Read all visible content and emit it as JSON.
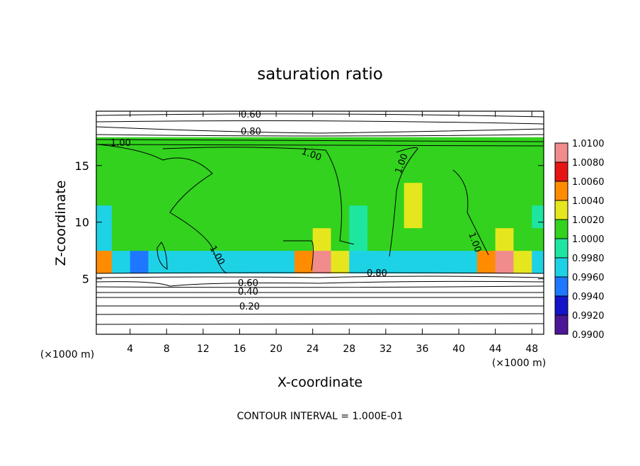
{
  "chart_data": {
    "type": "contour",
    "title": "saturation ratio",
    "xlabel": "X-coordinate",
    "ylabel": "Z-coordinate",
    "x_unit": "(×1000 m)",
    "y_unit": "(×1000 m)",
    "footnote": "CONTOUR INTERVAL = 1.000E-01",
    "xlim": [
      0.3,
      49.3
    ],
    "ylim": [
      0.1,
      19.8
    ],
    "xticks": [
      4,
      8,
      12,
      16,
      20,
      24,
      28,
      32,
      36,
      40,
      44,
      48
    ],
    "yticks": [
      5,
      10,
      15
    ],
    "x": [
      1,
      3,
      5,
      7,
      9,
      11,
      13,
      15,
      17,
      19,
      21,
      23,
      25,
      27,
      29,
      31,
      33,
      35,
      37,
      39,
      41,
      43,
      45,
      47,
      49
    ],
    "z": [
      6.5,
      8.5,
      10.5,
      12.5,
      14.5,
      16.5
    ],
    "values": [
      [
        1.005,
        0.997,
        0.995,
        0.997,
        0.997,
        0.997,
        0.997,
        0.997,
        0.998,
        0.997,
        0.998,
        1.005,
        1.009,
        1.004,
        0.997,
        0.997,
        0.998,
        0.997,
        0.998,
        0.998,
        0.997,
        1.005,
        1.009,
        1.004,
        0.997
      ],
      [
        0.997,
        1.001,
        1.001,
        1.001,
        1.001,
        1.001,
        1.001,
        1.001,
        1.001,
        1.001,
        1.001,
        1.001,
        1.003,
        1.001,
        0.999,
        1.001,
        1.001,
        1.001,
        1.001,
        1.001,
        1.001,
        1.001,
        1.003,
        1.001,
        1.001
      ],
      [
        0.997,
        1.001,
        1.001,
        1.001,
        1.001,
        1.001,
        1.001,
        1.001,
        1.001,
        1.001,
        1.001,
        1.001,
        1.001,
        1.001,
        0.999,
        1.001,
        1.001,
        1.003,
        1.001,
        1.001,
        1.001,
        1.001,
        1.001,
        1.001,
        0.999
      ],
      [
        1.001,
        1.001,
        1.001,
        1.001,
        1.001,
        1.001,
        1.001,
        1.001,
        1.001,
        1.001,
        1.001,
        1.001,
        1.001,
        1.001,
        1.001,
        1.001,
        1.001,
        1.003,
        1.001,
        1.001,
        1.001,
        1.001,
        1.001,
        1.001,
        1.001
      ],
      [
        1.001,
        1.001,
        1.001,
        1.001,
        1.001,
        1.001,
        1.001,
        1.001,
        1.001,
        1.001,
        1.001,
        1.001,
        1.001,
        1.001,
        1.001,
        1.001,
        1.001,
        1.001,
        1.001,
        1.001,
        1.001,
        1.001,
        1.001,
        1.001,
        1.001
      ],
      [
        1.001,
        1.001,
        1.001,
        1.001,
        1.001,
        1.001,
        1.001,
        1.001,
        1.001,
        1.001,
        1.001,
        1.001,
        1.001,
        1.001,
        1.001,
        1.001,
        1.001,
        1.001,
        1.001,
        1.001,
        1.001,
        1.001,
        1.001,
        1.001,
        1.001
      ]
    ],
    "levels": [
      {
        "value": 0.99,
        "label": "0.9900"
      },
      {
        "value": 0.992,
        "label": "0.9920"
      },
      {
        "value": 0.994,
        "label": "0.9940"
      },
      {
        "value": 0.996,
        "label": "0.9960"
      },
      {
        "value": 0.998,
        "label": "0.9980"
      },
      {
        "value": 1.0,
        "label": "1.0000"
      },
      {
        "value": 1.002,
        "label": "1.0020"
      },
      {
        "value": 1.004,
        "label": "1.0040"
      },
      {
        "value": 1.006,
        "label": "1.0060"
      },
      {
        "value": 1.008,
        "label": "1.0080"
      },
      {
        "value": 1.01,
        "label": "1.0100"
      }
    ],
    "colors": [
      "#4b1796",
      "#1414c8",
      "#1e78ff",
      "#1ed2e6",
      "#1ee6a0",
      "#32d21e",
      "#e6e61e",
      "#ff8c00",
      "#e61414",
      "#f08c8c"
    ],
    "contour_labels": [
      {
        "value": 0.6,
        "label": "0.60"
      },
      {
        "value": 0.8,
        "label": "0.80"
      },
      {
        "value": 1.0,
        "label": "1.00"
      },
      {
        "value": 1.0,
        "label": "1.00"
      },
      {
        "value": 1.0,
        "label": "1.00"
      },
      {
        "value": 1.0,
        "label": "1.00"
      },
      {
        "value": 1.0,
        "label": "1.00"
      },
      {
        "value": 0.6,
        "label": "0.60"
      },
      {
        "value": 0.4,
        "label": "0.40"
      },
      {
        "value": 0.8,
        "label": "0.80"
      },
      {
        "value": 0.2,
        "label": "0.20"
      }
    ]
  }
}
